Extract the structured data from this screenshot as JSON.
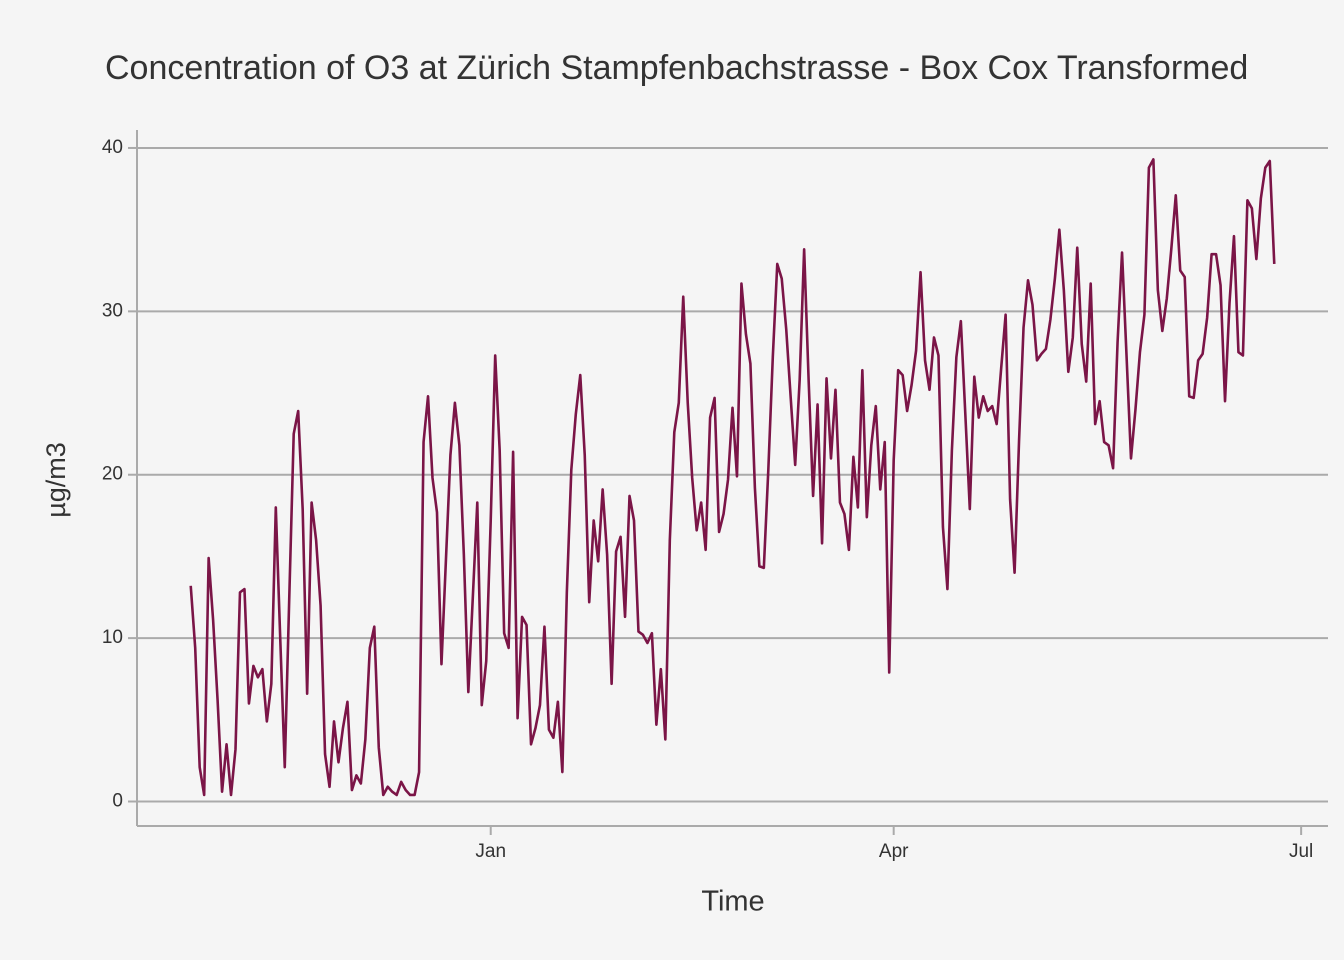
{
  "chart_data": {
    "type": "line",
    "title": "Concentration of O3 at Zürich Stampfenbachstrasse - Box Cox Transformed",
    "xlabel": "Time",
    "ylabel": "µg/m3",
    "color": "#7b1547",
    "grid": true,
    "xlim": [
      -12,
      254
    ],
    "xticks": [
      {
        "value": 67,
        "label": "Jan"
      },
      {
        "value": 157,
        "label": "Apr"
      },
      {
        "value": 248,
        "label": "Jul"
      }
    ],
    "ylim": [
      -1.5,
      41.1
    ],
    "yticks": [
      0,
      10,
      20,
      30,
      40
    ],
    "x": [
      0,
      1,
      2,
      3,
      4,
      5,
      6,
      7,
      8,
      9,
      10,
      11,
      12,
      13,
      14,
      15,
      16,
      17,
      18,
      19,
      20,
      21,
      22,
      23,
      24,
      25,
      26,
      27,
      28,
      29,
      30,
      31,
      32,
      33,
      34,
      35,
      36,
      37,
      38,
      39,
      40,
      41,
      42,
      43,
      44,
      45,
      46,
      47,
      48,
      49,
      50,
      51,
      52,
      53,
      54,
      55,
      56,
      57,
      58,
      59,
      60,
      61,
      62,
      63,
      64,
      65,
      66,
      67,
      68,
      69,
      70,
      71,
      72,
      73,
      74,
      75,
      76,
      77,
      78,
      79,
      80,
      81,
      82,
      83,
      84,
      85,
      86,
      87,
      88,
      89,
      90,
      91,
      92,
      93,
      94,
      95,
      96,
      97,
      98,
      99,
      100,
      101,
      102,
      103,
      104,
      105,
      106,
      107,
      108,
      109,
      110,
      111,
      112,
      113,
      114,
      115,
      116,
      117,
      118,
      119,
      120,
      121,
      122,
      123,
      124,
      125,
      126,
      127,
      128,
      129,
      130,
      131,
      132,
      133,
      134,
      135,
      136,
      137,
      138,
      139,
      140,
      141,
      142,
      143,
      144,
      145,
      146,
      147,
      148,
      149,
      150,
      151,
      152,
      153,
      154,
      155,
      156,
      157,
      158,
      159,
      160,
      161,
      162,
      163,
      164,
      165,
      166,
      167,
      168,
      169,
      170,
      171,
      172,
      173,
      174,
      175,
      176,
      177,
      178,
      179,
      180,
      181,
      182,
      183,
      184,
      185,
      186,
      187,
      188,
      189,
      190,
      191,
      192,
      193,
      194,
      195,
      196,
      197,
      198,
      199,
      200,
      201,
      202,
      203,
      204,
      205,
      206,
      207,
      208,
      209,
      210,
      211,
      212,
      213,
      214,
      215,
      216,
      217,
      218,
      219,
      220,
      221,
      222,
      223,
      224,
      225,
      226,
      227,
      228,
      229,
      230,
      231,
      232,
      233,
      234,
      235,
      236,
      237,
      238,
      239,
      240,
      241,
      242
    ],
    "values": [
      13.2,
      9.4,
      2.1,
      0.4,
      14.9,
      11.1,
      6.2,
      0.6,
      3.5,
      0.4,
      3.2,
      12.8,
      13.0,
      6.0,
      8.3,
      7.6,
      8.1,
      4.9,
      7.2,
      18.0,
      9.9,
      2.1,
      12.4,
      22.5,
      23.9,
      17.9,
      6.6,
      18.3,
      16.0,
      12.0,
      2.9,
      0.9,
      4.9,
      2.4,
      4.5,
      6.1,
      0.7,
      1.6,
      1.1,
      3.8,
      9.4,
      10.7,
      3.3,
      0.4,
      0.9,
      0.6,
      0.4,
      1.2,
      0.7,
      0.4,
      0.4,
      1.8,
      22.0,
      24.8,
      19.8,
      17.7,
      8.4,
      14.8,
      21.2,
      24.4,
      21.8,
      15.1,
      6.7,
      12.5,
      18.3,
      5.9,
      8.6,
      17.2,
      27.3,
      21.5,
      10.3,
      9.4,
      21.4,
      5.1,
      11.3,
      10.8,
      3.5,
      4.5,
      5.9,
      10.7,
      4.4,
      3.9,
      6.1,
      1.8,
      12.8,
      20.3,
      23.7,
      26.1,
      21.2,
      12.2,
      17.2,
      14.7,
      19.1,
      15.1,
      7.2,
      15.3,
      16.2,
      11.3,
      18.7,
      17.2,
      10.4,
      10.2,
      9.7,
      10.3,
      4.7,
      8.1,
      3.8,
      16.0,
      22.6,
      24.4,
      30.9,
      24.4,
      19.8,
      16.6,
      18.3,
      15.4,
      23.5,
      24.7,
      16.5,
      17.6,
      19.7,
      24.1,
      19.9,
      31.7,
      28.6,
      26.8,
      19.2,
      14.4,
      14.3,
      20.3,
      27.2,
      32.9,
      32.0,
      28.9,
      24.7,
      20.6,
      25.8,
      33.8,
      25.8,
      18.7,
      24.3,
      15.8,
      25.9,
      21.0,
      25.2,
      18.3,
      17.6,
      15.4,
      21.1,
      18.0,
      26.4,
      17.4,
      21.8,
      24.2,
      19.1,
      22.0,
      7.9,
      20.9,
      26.4,
      26.1,
      23.9,
      25.5,
      27.6,
      32.4,
      27.0,
      25.2,
      28.4,
      27.3,
      16.8,
      13.0,
      21.5,
      27.2,
      29.4,
      23.7,
      17.9,
      26.0,
      23.5,
      24.8,
      23.9,
      24.2,
      23.1,
      26.5,
      29.8,
      18.5,
      14.0,
      22.1,
      29.0,
      31.9,
      30.4,
      27.0,
      27.4,
      27.7,
      29.5,
      32.0,
      35.0,
      31.3,
      26.3,
      28.4,
      33.9,
      28.0,
      25.7,
      31.7,
      23.1,
      24.5,
      22.0,
      21.8,
      20.4,
      28.1,
      33.6,
      27.3,
      21.0,
      24.0,
      27.5,
      29.8,
      38.8,
      39.3,
      31.3,
      28.8,
      30.8,
      33.8,
      37.1,
      32.5,
      32.1,
      24.8,
      24.7,
      27.0,
      27.4,
      29.6,
      33.5,
      33.5,
      31.6,
      24.5,
      30.5,
      34.6,
      27.5,
      27.3,
      36.8,
      36.3,
      33.2,
      36.9,
      38.8,
      39.2,
      32.9
    ]
  }
}
